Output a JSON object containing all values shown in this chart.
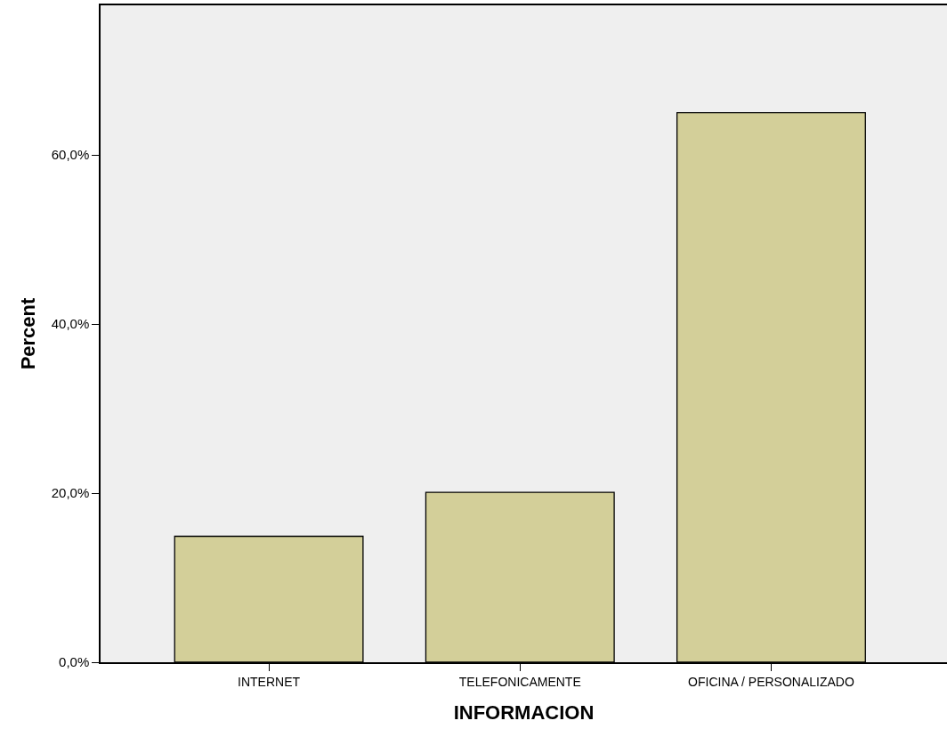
{
  "chart_data": {
    "type": "bar",
    "xlabel": "INFORMACION",
    "ylabel": "Percent",
    "categories": [
      "INTERNET",
      "TELEFONICAMENTE",
      "OFICINA / PERSONALIZADO"
    ],
    "values": [
      14.9,
      20.1,
      65.0
    ],
    "color": "#d3cf99",
    "ylim": [
      0,
      77.7
    ],
    "yticks": [
      {
        "value": 0,
        "label": "0,0%"
      },
      {
        "value": 20,
        "label": "20,0%"
      },
      {
        "value": 40,
        "label": "40,0%"
      },
      {
        "value": 60,
        "label": "60,0%"
      }
    ],
    "grid": false
  }
}
